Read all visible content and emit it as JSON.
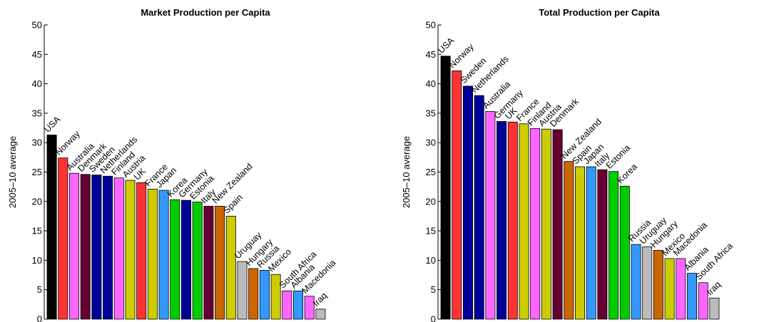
{
  "chart_data": [
    {
      "type": "bar",
      "title": "Market Production per Capita",
      "ylabel": "2005–10 average",
      "xlabel": "",
      "ylim": [
        0,
        50
      ],
      "yticks": [
        0,
        5,
        10,
        15,
        20,
        25,
        30,
        35,
        40,
        45,
        50
      ],
      "categories": [
        "USA",
        "Norway",
        "Australia",
        "Denmark",
        "Sweden",
        "Netherlands",
        "Finland",
        "Austria",
        "UK",
        "France",
        "Japan",
        "Korea",
        "Germany",
        "Estonia",
        "Italy",
        "New Zealand",
        "Spain",
        "Uruguay",
        "Hungary",
        "Russia",
        "Mexico",
        "South Africa",
        "Albania",
        "Macedonia",
        "Iraq"
      ],
      "values": [
        31.3,
        27.4,
        24.8,
        24.6,
        24.5,
        24.3,
        24.0,
        23.6,
        23.2,
        22.1,
        21.9,
        20.3,
        20.2,
        19.9,
        19.2,
        19.2,
        17.5,
        9.8,
        8.6,
        8.3,
        7.6,
        4.8,
        4.8,
        3.9,
        1.7
      ],
      "colors": [
        "#000000",
        "#ff3333",
        "#ff66ff",
        "#660033",
        "#000099",
        "#000099",
        "#ff66ff",
        "#cccc00",
        "#ff3333",
        "#cccc00",
        "#3399ff",
        "#00cc00",
        "#000099",
        "#00cc00",
        "#660033",
        "#cc6600",
        "#cccc00",
        "#bbbbbb",
        "#cc6600",
        "#3399ff",
        "#cccc00",
        "#ff66ff",
        "#3399ff",
        "#ff66ff",
        "#bbbbbb"
      ],
      "grid": false,
      "legend": "none"
    },
    {
      "type": "bar",
      "title": "Total Production per Capita",
      "ylabel": "2005–10 average",
      "xlabel": "",
      "ylim": [
        0,
        50
      ],
      "yticks": [
        0,
        5,
        10,
        15,
        20,
        25,
        30,
        35,
        40,
        45,
        50
      ],
      "categories": [
        "USA",
        "Norway",
        "Sweden",
        "Netherlands",
        "Australia",
        "Germany",
        "UK",
        "France",
        "Finland",
        "Austria",
        "Denmark",
        "New Zealand",
        "Spain",
        "Japan",
        "Italy",
        "Estonia",
        "Korea",
        "Russia",
        "Uruguay",
        "Hungary",
        "Mexico",
        "Macedonia",
        "Albania",
        "South Africa",
        "Iraq"
      ],
      "values": [
        44.7,
        42.2,
        39.6,
        38.0,
        35.3,
        33.6,
        33.5,
        33.2,
        32.4,
        32.3,
        32.2,
        26.8,
        25.9,
        25.9,
        25.4,
        25.1,
        22.6,
        12.7,
        12.3,
        11.7,
        10.3,
        10.3,
        7.8,
        6.2,
        3.6
      ],
      "colors": [
        "#000000",
        "#ff3333",
        "#000099",
        "#000099",
        "#ff66ff",
        "#000099",
        "#ff3333",
        "#cccc00",
        "#ff66ff",
        "#cccc00",
        "#660033",
        "#cc6600",
        "#cccc00",
        "#3399ff",
        "#660033",
        "#00cc00",
        "#00cc00",
        "#3399ff",
        "#bbbbbb",
        "#cc6600",
        "#cccc00",
        "#ff66ff",
        "#3399ff",
        "#ff66ff",
        "#bbbbbb"
      ],
      "grid": false,
      "legend": "none"
    }
  ]
}
